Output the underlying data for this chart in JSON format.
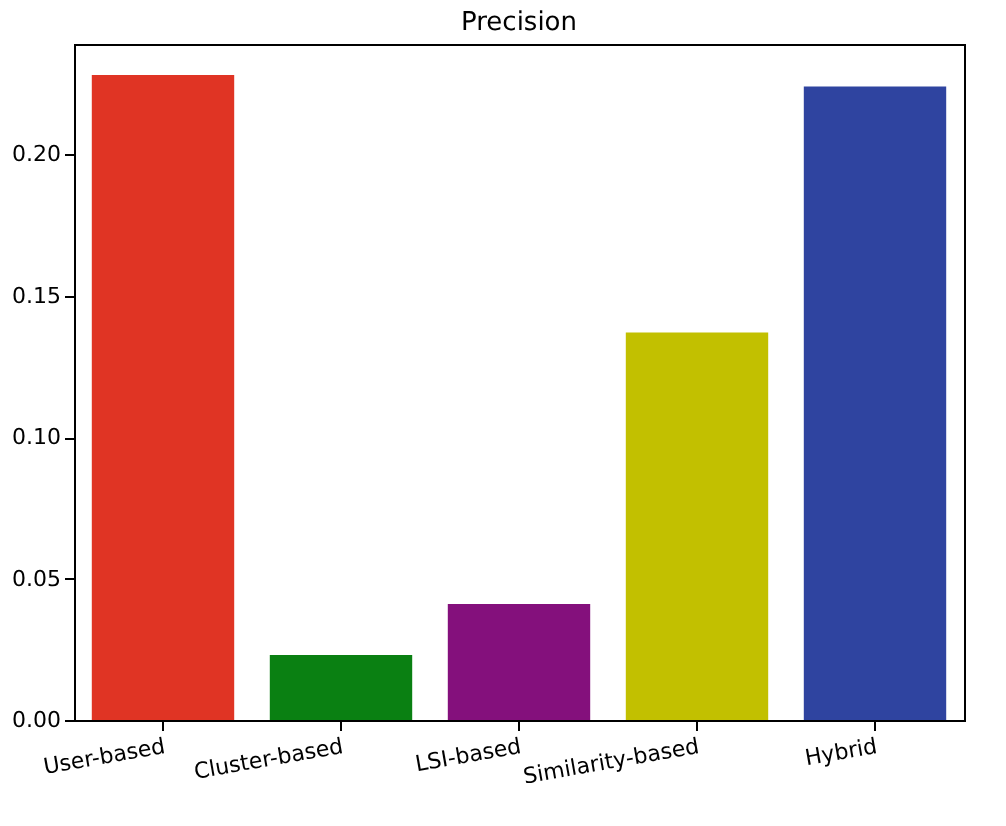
{
  "chart_data": {
    "type": "bar",
    "title": "Precision",
    "categories": [
      "User-based",
      "Cluster-based",
      "LSI-based",
      "Similarity-based",
      "Hybrid"
    ],
    "values": [
      0.228,
      0.023,
      0.041,
      0.137,
      0.224
    ],
    "colors": [
      "#e03424",
      "#0a8012",
      "#84107c",
      "#c2c000",
      "#2f44a0"
    ],
    "ylim": [
      0,
      0.239
    ],
    "yticks": [
      {
        "value": 0,
        "label": "0.00"
      },
      {
        "value": 0.05,
        "label": "0.05"
      },
      {
        "value": 0.1,
        "label": "0.10"
      },
      {
        "value": 0.15,
        "label": "0.15"
      },
      {
        "value": 0.2,
        "label": "0.20"
      }
    ],
    "grid": false
  }
}
